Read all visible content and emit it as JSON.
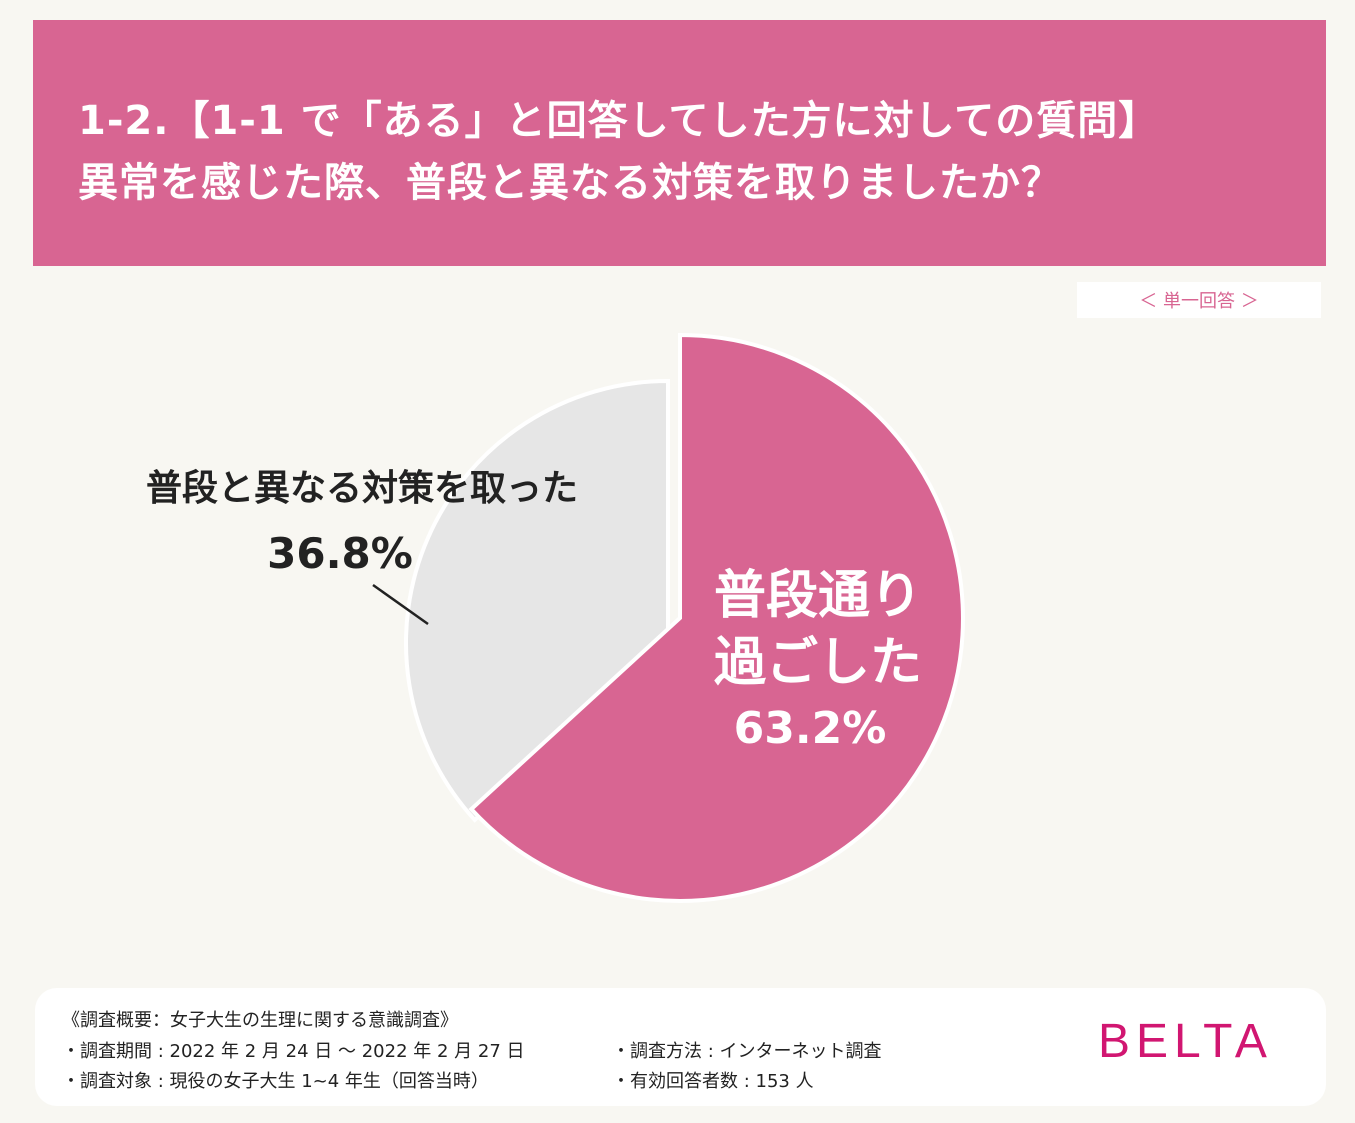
{
  "title": {
    "line1": "1-2.【1-1 で「ある」と回答してした方に対しての質問】",
    "line2": "異常を感じた際、普段と異なる対策を取りましたか？"
  },
  "answer_type": "＜ 単一回答 ＞",
  "colors": {
    "accent": "#d86592",
    "slice_other": "#e6e6e6",
    "background": "#f8f7f2",
    "logo": "#d11671"
  },
  "chart_data": {
    "type": "pie",
    "slices": [
      {
        "label_lines": [
          "普段通り",
          "過ごした"
        ],
        "value": 63.2,
        "value_label": "63.2%",
        "color": "#d86592",
        "exploded": true
      },
      {
        "label_lines": [
          "普段と異なる対策を取った"
        ],
        "value": 36.8,
        "value_label": "36.8%",
        "color": "#e6e6e6",
        "exploded": false
      }
    ],
    "start": "top",
    "direction": "clockwise"
  },
  "footer": {
    "heading": "《調査概要：女子大生の生理に関する意識調査》",
    "period": "・調査期間 : 2022 年 2 月 24 日 ～ 2022 年 2 月 27 日",
    "target": "・調査対象 : 現役の女子大生 1~4 年生（回答当時）",
    "method": "・調査方法 : インターネット調査",
    "respondents": "・有効回答者数 : 153 人"
  },
  "logo": "BELTA"
}
